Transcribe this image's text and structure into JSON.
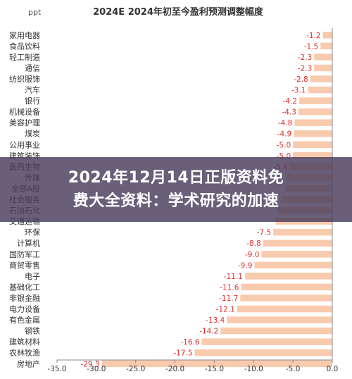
{
  "chart_data": {
    "type": "bar",
    "orientation": "horizontal",
    "title": "2024E 2024年初至今盈利预测调整幅度",
    "unit": "ppt",
    "categories": [
      "家用电器",
      "食品饮料",
      "轻工制造",
      "通信",
      "纺织服饰",
      "汽车",
      "银行",
      "机械设备",
      "美容护理",
      "煤炭",
      "公用事业",
      "建筑装饰",
      "医药生物",
      "传媒",
      "全部A股",
      "社会服务",
      "石油石化",
      "交通运输",
      "环保",
      "计算机",
      "国防军工",
      "商贸零售",
      "电子",
      "基础化工",
      "非银金融",
      "电力设备",
      "有色金属",
      "钢铁",
      "建筑材料",
      "农林牧渔",
      "房地产"
    ],
    "values": [
      -1.2,
      -1.5,
      -2.3,
      -2.3,
      -2.8,
      -3.1,
      -4.2,
      -4.3,
      -4.8,
      -4.9,
      -5.0,
      -5.0,
      -5.4,
      -5.8,
      -6.0,
      -6.5,
      -7.0,
      -7.2,
      -7.5,
      -8.8,
      -9.0,
      -9.9,
      -11.1,
      -11.6,
      -11.7,
      -12.1,
      -13.4,
      -14.2,
      -16.6,
      -17.5,
      -29.3
    ],
    "value_labels": [
      "-1.2",
      "-1.5",
      "-2.3",
      "-2.3",
      "-2.8",
      "-3.1",
      "-4.2",
      "-4.3",
      "-4.8",
      "-4.9",
      "-5.0",
      "-5.0",
      "-5.4",
      "",
      "",
      "",
      "",
      "",
      "-7.5",
      "-8.8",
      "-9.0",
      "-9.9",
      "-11.1",
      "-11.6",
      "-11.7",
      "-12.1",
      "-13.4",
      "-14.2",
      "-16.6",
      "-17.5",
      "-29.3"
    ],
    "xlim": [
      -35.0,
      0.0
    ],
    "xticks": [
      "-35.0",
      "-30.0",
      "-25.0",
      "-20.0",
      "-15.0",
      "-10.0",
      "-5.0",
      "0.0"
    ],
    "grid": false,
    "legend": "none",
    "colors": {
      "bar": "#f9cbae",
      "value_label": "#e0302a",
      "axis": "#888888",
      "text": "#333333"
    }
  },
  "overlay": {
    "lines": [
      "2024年12月14日正版资料免",
      "费大全资料：学术研究的加速"
    ],
    "background": "#483c5c"
  }
}
